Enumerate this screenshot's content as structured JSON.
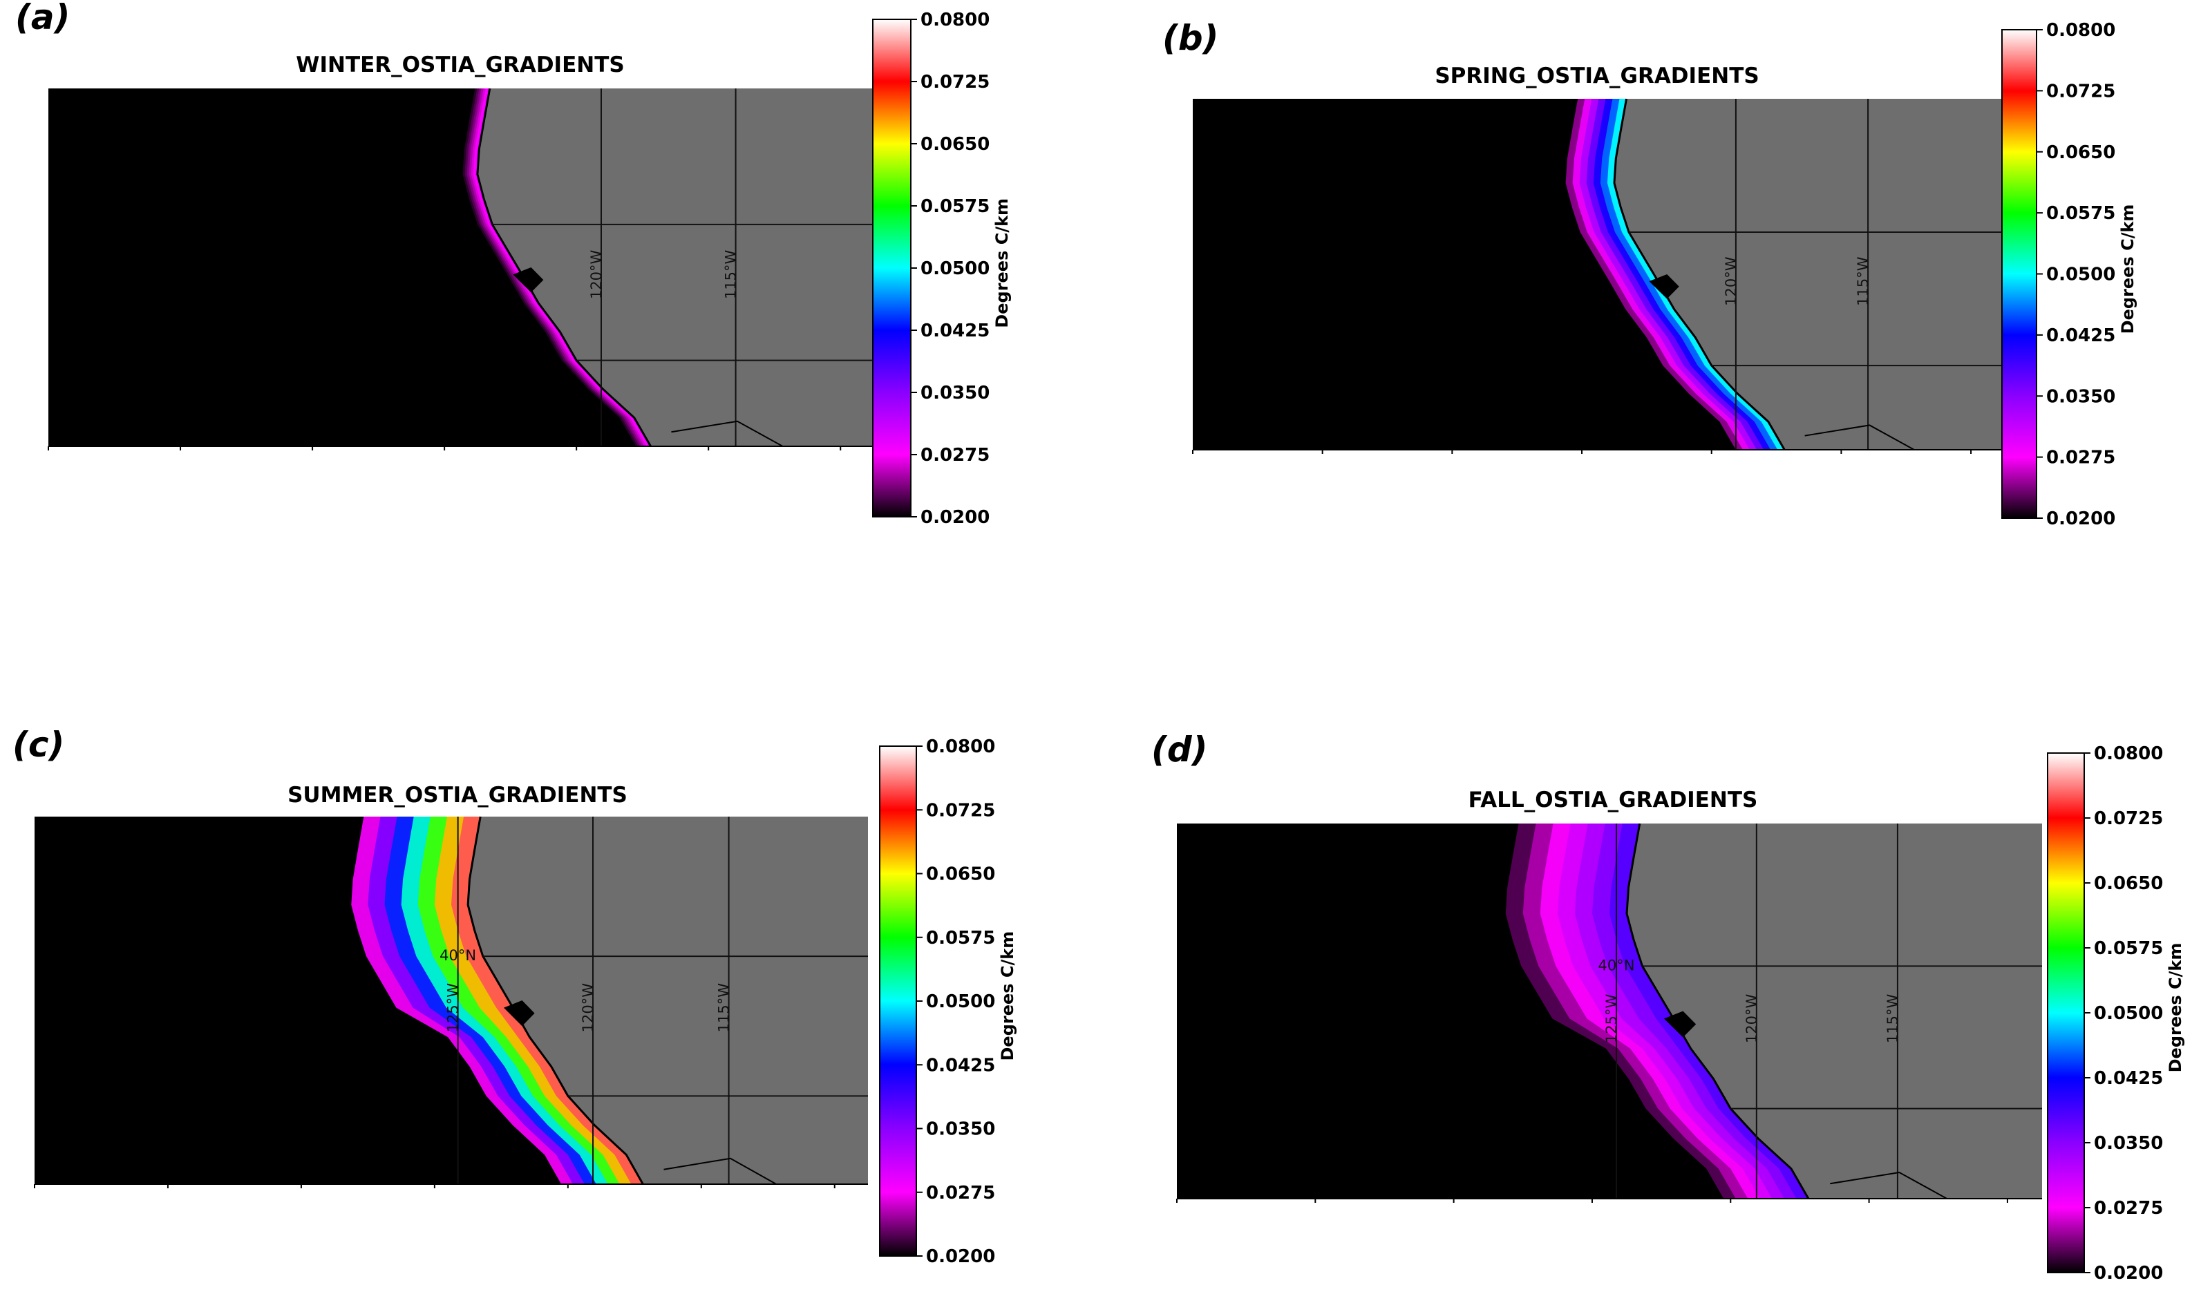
{
  "colors": {
    "ocean": "#000000",
    "land": "#6e6e6e",
    "gridline": "#111111",
    "coast": "#000000"
  },
  "colorbar": {
    "label": "Degrees C/km",
    "ticks": [
      "0.0800",
      "0.0725",
      "0.0650",
      "0.0575",
      "0.0500",
      "0.0425",
      "0.0350",
      "0.0275",
      "0.0200"
    ],
    "range": [
      0.02,
      0.08
    ],
    "stops": [
      "#000000",
      "#ff00ff",
      "#8a00ff",
      "#0000ff",
      "#00ffff",
      "#00ff00",
      "#ffff00",
      "#ff0000",
      "#ffffff"
    ]
  },
  "chart_data": [
    {
      "type": "heatmap",
      "panel_label": "(a)",
      "title": "WINTER_OSTIA_GRADIENTS",
      "lon_labels": [
        "120°W",
        "115°W"
      ],
      "lat_labels": [],
      "colorbar_label": "Degrees C/km",
      "vmin": 0.02,
      "vmax": 0.08,
      "season": "winter",
      "nearshore_gradient_level": 0.029,
      "offshore_band_extent": "narrow"
    },
    {
      "type": "heatmap",
      "panel_label": "(b)",
      "title": "SPRING_OSTIA_GRADIENTS",
      "lon_labels": [
        "120°W",
        "115°W"
      ],
      "lat_labels": [],
      "colorbar_label": "Degrees C/km",
      "vmin": 0.02,
      "vmax": 0.08,
      "season": "spring",
      "nearshore_gradient_level": 0.05,
      "offshore_band_extent": "moderate"
    },
    {
      "type": "heatmap",
      "panel_label": "(c)",
      "title": "SUMMER_OSTIA_GRADIENTS",
      "lon_labels": [
        "125°W",
        "120°W",
        "115°W"
      ],
      "lat_labels": [
        "40°N"
      ],
      "colorbar_label": "Degrees C/km",
      "vmin": 0.02,
      "vmax": 0.08,
      "season": "summer",
      "nearshore_gradient_level": 0.075,
      "offshore_band_extent": "wide"
    },
    {
      "type": "heatmap",
      "panel_label": "(d)",
      "title": "FALL_OSTIA_GRADIENTS",
      "lon_labels": [
        "125°W",
        "120°W",
        "115°W"
      ],
      "lat_labels": [
        "40°N"
      ],
      "colorbar_label": "Degrees C/km",
      "vmin": 0.02,
      "vmax": 0.08,
      "season": "fall",
      "nearshore_gradient_level": 0.038,
      "offshore_band_extent": "wide"
    }
  ]
}
